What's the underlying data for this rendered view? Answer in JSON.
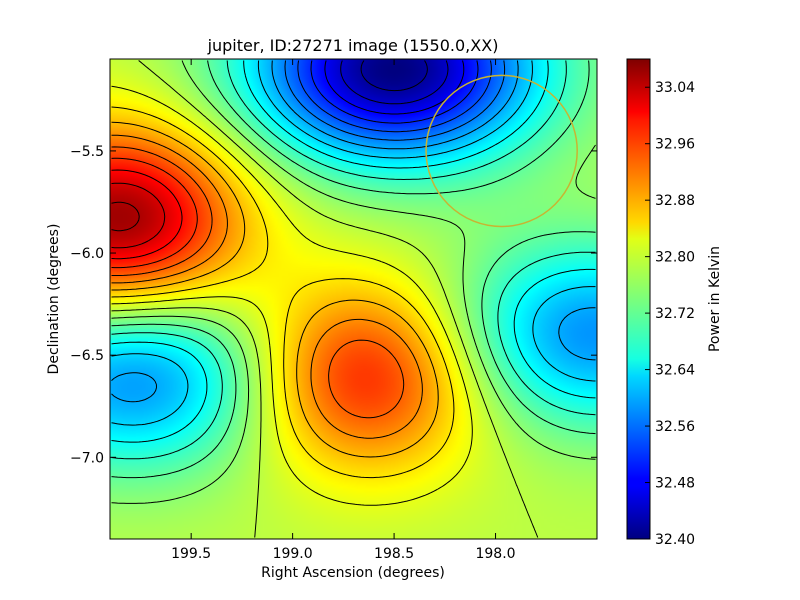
{
  "chart_data": {
    "type": "heatmap",
    "title": "jupiter, ID:27271 image (1550.0,XX)",
    "xlabel": "Right Ascension (degrees)",
    "ylabel": "Declination (degrees)",
    "xlim": [
      199.9,
      197.5
    ],
    "ylim": [
      -7.4,
      -5.05
    ],
    "x_ticks": [
      199.5,
      199.0,
      198.5,
      198.0
    ],
    "x_tick_labels": [
      "199.5",
      "199.0",
      "198.5",
      "198.0"
    ],
    "y_ticks": [
      -5.5,
      -6.0,
      -6.5,
      -7.0
    ],
    "y_tick_labels": [
      "−5.5",
      "−6.0",
      "−6.5",
      "−7.0"
    ],
    "colorbar": {
      "label": "Power in Kelvin",
      "range": [
        32.4,
        33.08
      ],
      "ticks": [
        33.04,
        32.96,
        32.88,
        32.8,
        32.72,
        32.64,
        32.56,
        32.48,
        32.4
      ],
      "tick_labels": [
        "33.04",
        "32.96",
        "32.88",
        "32.80",
        "32.72",
        "32.64",
        "32.56",
        "32.48",
        "32.40"
      ],
      "colormap": "jet"
    },
    "features": [
      {
        "kind": "max",
        "ra": 199.85,
        "dec": -5.85,
        "value": 33.07
      },
      {
        "kind": "max",
        "ra": 198.65,
        "dec": -6.6,
        "value": 32.99
      },
      {
        "kind": "min",
        "ra": 198.5,
        "dec": -5.1,
        "value": 32.4
      },
      {
        "kind": "min",
        "ra": 199.75,
        "dec": -6.6,
        "value": 32.57
      },
      {
        "kind": "min",
        "ra": 197.55,
        "dec": -6.4,
        "value": 32.58
      }
    ],
    "contour_line_color": "#000000",
    "circle": {
      "ra": 197.97,
      "dec": -5.5,
      "radius_deg": 0.37,
      "color": "#c8b432"
    },
    "grid": false
  }
}
